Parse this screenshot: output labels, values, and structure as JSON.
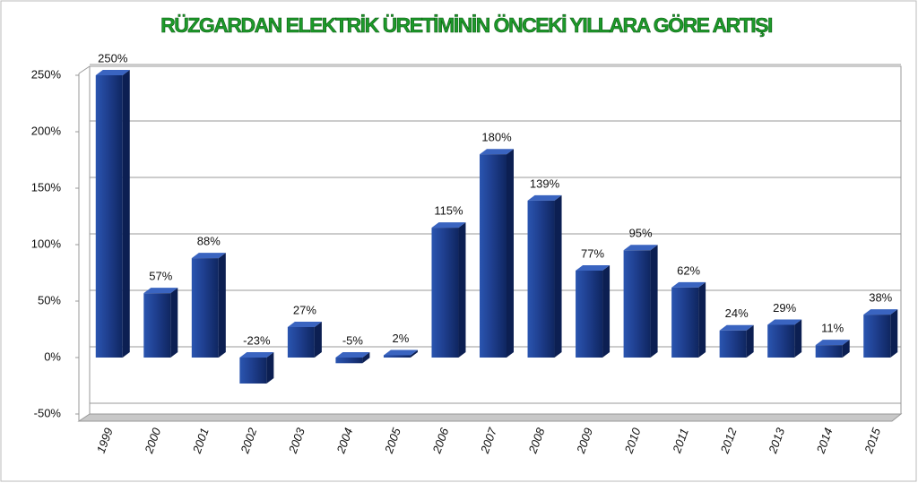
{
  "chart_data": {
    "type": "bar",
    "title": "RÜZGARDAN ELEKTRİK ÜRETİMİNİN ÖNCEKİ YILLARA GÖRE ARTIŞI",
    "categories": [
      "1999",
      "2000",
      "2001",
      "2002",
      "2003",
      "2004",
      "2005",
      "2006",
      "2007",
      "2008",
      "2009",
      "2010",
      "2011",
      "2012",
      "2013",
      "2014",
      "2015"
    ],
    "values": [
      250,
      57,
      88,
      -23,
      27,
      -5,
      2,
      115,
      180,
      139,
      77,
      95,
      62,
      24,
      29,
      11,
      38
    ],
    "value_labels": [
      "250%",
      "57%",
      "88%",
      "-23%",
      "27%",
      "-5%",
      "2%",
      "115%",
      "180%",
      "139%",
      "77%",
      "95%",
      "62%",
      "24%",
      "29%",
      "11%",
      "38%"
    ],
    "color": "#1f3f8f",
    "ylim": [
      -50,
      250
    ],
    "yticks": [
      {
        "value": -50,
        "label": "-50%"
      },
      {
        "value": 0,
        "label": "0%"
      },
      {
        "value": 50,
        "label": "50%"
      },
      {
        "value": 100,
        "label": "100%"
      },
      {
        "value": 150,
        "label": "150%"
      },
      {
        "value": 200,
        "label": "200%"
      },
      {
        "value": 250,
        "label": "250%"
      }
    ],
    "grid": true
  }
}
